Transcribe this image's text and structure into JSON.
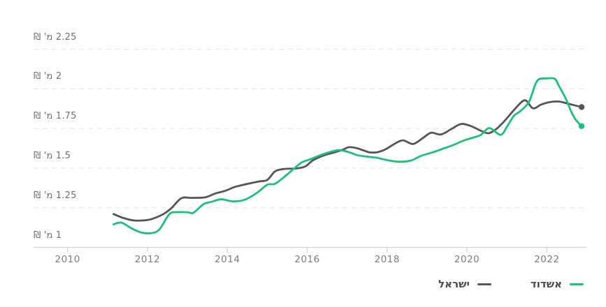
{
  "chart_data": {
    "type": "line",
    "title": "",
    "unit_label": "מ' ₪",
    "grid": "horizontal-dashed",
    "legend_position": "bottom-right",
    "x_domain": [
      2009.15,
      2023.0
    ],
    "y_domain": [
      1.0,
      2.56
    ],
    "x_ticks": [
      {
        "label": "2010",
        "year": 2010
      },
      {
        "label": "2012",
        "year": 2012
      },
      {
        "label": "2014",
        "year": 2014
      },
      {
        "label": "2016",
        "year": 2016
      },
      {
        "label": "2018",
        "year": 2018
      },
      {
        "label": "2020",
        "year": 2020
      },
      {
        "label": "2022",
        "year": 2022
      }
    ],
    "y_ticks": [
      {
        "label": "1 מ' ₪",
        "value": 1
      },
      {
        "label": "1.25 מ' ₪",
        "value": 1.25
      },
      {
        "label": "1.5 מ' ₪",
        "value": 1.5
      },
      {
        "label": "1.75 מ' ₪",
        "value": 1.75
      },
      {
        "label": "2 מ' ₪",
        "value": 2
      },
      {
        "label": "2.25 מ' ₪",
        "value": 2.25
      }
    ],
    "series": [
      {
        "name": "ישראל",
        "color": "#555555",
        "end_dot": true,
        "points": [
          [
            2011.15,
            1.21
          ],
          [
            2011.4,
            1.185
          ],
          [
            2011.65,
            1.17
          ],
          [
            2011.9,
            1.17
          ],
          [
            2012.1,
            1.178
          ],
          [
            2012.4,
            1.21
          ],
          [
            2012.6,
            1.248
          ],
          [
            2012.85,
            1.31
          ],
          [
            2013.1,
            1.312
          ],
          [
            2013.45,
            1.316
          ],
          [
            2013.7,
            1.34
          ],
          [
            2013.95,
            1.357
          ],
          [
            2014.2,
            1.382
          ],
          [
            2014.5,
            1.4
          ],
          [
            2014.8,
            1.416
          ],
          [
            2015.0,
            1.425
          ],
          [
            2015.2,
            1.48
          ],
          [
            2015.45,
            1.495
          ],
          [
            2015.7,
            1.497
          ],
          [
            2015.95,
            1.51
          ],
          [
            2016.15,
            1.55
          ],
          [
            2016.45,
            1.583
          ],
          [
            2016.7,
            1.6
          ],
          [
            2016.9,
            1.617
          ],
          [
            2017.05,
            1.632
          ],
          [
            2017.25,
            1.625
          ],
          [
            2017.55,
            1.6
          ],
          [
            2017.75,
            1.6
          ],
          [
            2017.95,
            1.617
          ],
          [
            2018.2,
            1.655
          ],
          [
            2018.4,
            1.675
          ],
          [
            2018.65,
            1.652
          ],
          [
            2018.9,
            1.69
          ],
          [
            2019.1,
            1.723
          ],
          [
            2019.35,
            1.712
          ],
          [
            2019.6,
            1.745
          ],
          [
            2019.85,
            1.778
          ],
          [
            2020.1,
            1.765
          ],
          [
            2020.35,
            1.735
          ],
          [
            2020.55,
            1.72
          ],
          [
            2020.75,
            1.75
          ],
          [
            2020.95,
            1.8
          ],
          [
            2021.2,
            1.873
          ],
          [
            2021.45,
            1.928
          ],
          [
            2021.65,
            1.877
          ],
          [
            2021.85,
            1.9
          ],
          [
            2022.05,
            1.915
          ],
          [
            2022.3,
            1.92
          ],
          [
            2022.55,
            1.905
          ],
          [
            2022.87,
            1.885
          ]
        ]
      },
      {
        "name": "אשדוד",
        "color": "#1dbf79",
        "end_dot": true,
        "points": [
          [
            2011.15,
            1.145
          ],
          [
            2011.35,
            1.156
          ],
          [
            2011.6,
            1.12
          ],
          [
            2011.85,
            1.093
          ],
          [
            2012.1,
            1.09
          ],
          [
            2012.3,
            1.113
          ],
          [
            2012.55,
            1.21
          ],
          [
            2012.75,
            1.222
          ],
          [
            2013.0,
            1.222
          ],
          [
            2013.15,
            1.218
          ],
          [
            2013.4,
            1.272
          ],
          [
            2013.6,
            1.287
          ],
          [
            2013.85,
            1.303
          ],
          [
            2014.15,
            1.29
          ],
          [
            2014.45,
            1.302
          ],
          [
            2014.75,
            1.345
          ],
          [
            2015.0,
            1.395
          ],
          [
            2015.2,
            1.402
          ],
          [
            2015.5,
            1.46
          ],
          [
            2015.85,
            1.534
          ],
          [
            2016.05,
            1.553
          ],
          [
            2016.35,
            1.583
          ],
          [
            2016.55,
            1.6
          ],
          [
            2016.8,
            1.613
          ],
          [
            2017.05,
            1.6
          ],
          [
            2017.25,
            1.582
          ],
          [
            2017.5,
            1.572
          ],
          [
            2017.75,
            1.565
          ],
          [
            2018.0,
            1.55
          ],
          [
            2018.3,
            1.54
          ],
          [
            2018.6,
            1.548
          ],
          [
            2018.85,
            1.577
          ],
          [
            2019.15,
            1.6
          ],
          [
            2019.4,
            1.622
          ],
          [
            2019.65,
            1.645
          ],
          [
            2019.9,
            1.672
          ],
          [
            2020.15,
            1.692
          ],
          [
            2020.35,
            1.71
          ],
          [
            2020.56,
            1.752
          ],
          [
            2020.84,
            1.71
          ],
          [
            2021.0,
            1.76
          ],
          [
            2021.17,
            1.828
          ],
          [
            2021.35,
            1.862
          ],
          [
            2021.55,
            1.917
          ],
          [
            2021.7,
            2.02
          ],
          [
            2021.8,
            2.06
          ],
          [
            2022.0,
            2.066
          ],
          [
            2022.2,
            2.063
          ],
          [
            2022.3,
            2.02
          ],
          [
            2022.48,
            1.935
          ],
          [
            2022.6,
            1.862
          ],
          [
            2022.72,
            1.806
          ],
          [
            2022.87,
            1.765
          ]
        ]
      }
    ]
  },
  "legend": {
    "items": [
      {
        "label": "אשדוד",
        "color": "#1dbf79"
      },
      {
        "label": "ישראל",
        "color": "#555555"
      }
    ]
  },
  "colors": {
    "grid": "#e4e4e4",
    "axis": "#d4d4d4",
    "tick": "#cfcfcf",
    "x_label": "#7c7c7c",
    "y_label": "#6f6f6f",
    "legend_text": "#4a4a4a",
    "background": "#ffffff"
  }
}
